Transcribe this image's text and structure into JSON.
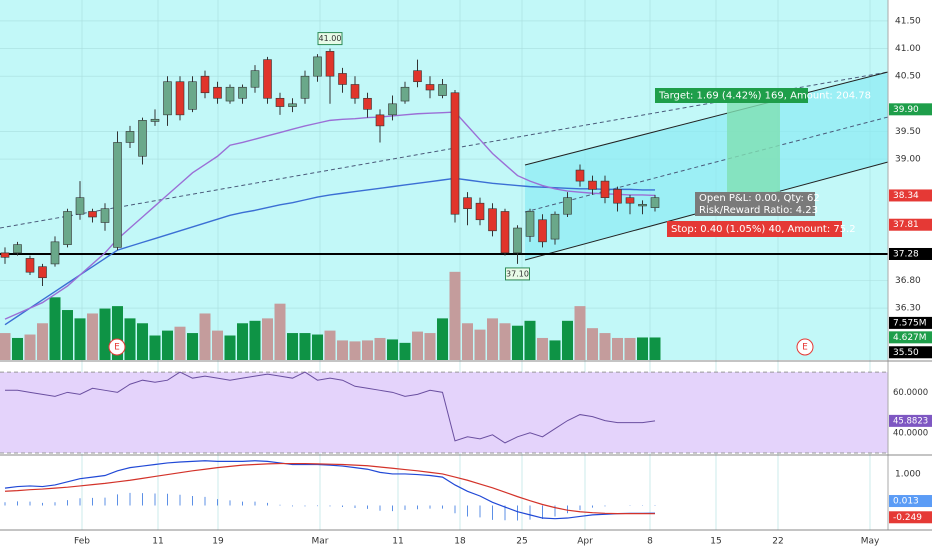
{
  "chart_data": {
    "type": "candlestick",
    "open": [
      37.3,
      37.3,
      37.2,
      37.05,
      37.1,
      37.45,
      38.0,
      38.05,
      37.85,
      37.4,
      39.3,
      39.05,
      39.68,
      39.8,
      40.4,
      39.9,
      40.5,
      40.3,
      40.05,
      40.1,
      40.3,
      40.8,
      40.1,
      39.95,
      40.1,
      40.5,
      40.95,
      40.55,
      40.35,
      40.1,
      39.8,
      39.8,
      40.05,
      40.6,
      40.35,
      40.15,
      40.2,
      38.3,
      38.2,
      38.1,
      38.05,
      37.3,
      37.6,
      37.9,
      37.55,
      38.0,
      38.8,
      38.6,
      38.6,
      38.45,
      38.3,
      38.15,
      38.12
    ],
    "high": [
      37.4,
      37.5,
      37.25,
      37.1,
      37.6,
      38.1,
      38.6,
      38.1,
      38.2,
      39.5,
      39.6,
      39.75,
      39.9,
      40.5,
      40.5,
      40.5,
      40.6,
      40.4,
      40.35,
      40.35,
      40.7,
      40.85,
      40.2,
      40.1,
      40.6,
      40.9,
      41.0,
      40.65,
      40.5,
      40.2,
      39.9,
      40.15,
      40.4,
      40.8,
      40.5,
      40.45,
      40.25,
      38.4,
      38.3,
      38.2,
      38.1,
      37.8,
      38.1,
      38.0,
      38.05,
      38.4,
      38.9,
      38.7,
      38.7,
      38.5,
      38.35,
      38.25,
      38.35
    ],
    "low": [
      37.1,
      37.25,
      36.9,
      36.7,
      37.05,
      37.4,
      37.9,
      37.85,
      37.7,
      37.35,
      39.2,
      38.9,
      39.6,
      39.6,
      39.7,
      39.85,
      40.1,
      40.0,
      40.0,
      40.0,
      40.2,
      40.0,
      39.8,
      39.85,
      40.0,
      40.4,
      40.0,
      40.2,
      40.0,
      39.75,
      39.3,
      39.7,
      40.0,
      40.3,
      40.1,
      40.1,
      37.85,
      37.8,
      37.8,
      37.6,
      37.25,
      37.1,
      37.5,
      37.4,
      37.45,
      37.95,
      38.5,
      38.35,
      38.2,
      38.05,
      38.0,
      38.0,
      38.05
    ],
    "close": [
      37.22,
      37.45,
      36.95,
      36.85,
      37.5,
      38.05,
      38.3,
      37.95,
      38.1,
      39.3,
      39.5,
      39.7,
      39.72,
      40.4,
      39.8,
      40.4,
      40.2,
      40.1,
      40.3,
      40.3,
      40.6,
      40.1,
      39.95,
      40.0,
      40.5,
      40.85,
      40.5,
      40.35,
      40.1,
      39.9,
      39.6,
      40.0,
      40.3,
      40.4,
      40.25,
      40.35,
      38.0,
      38.1,
      37.9,
      37.7,
      37.3,
      37.75,
      38.05,
      37.5,
      38.0,
      38.3,
      38.6,
      38.45,
      38.3,
      38.2,
      38.2,
      38.18,
      38.3
    ],
    "up_color": "#6aa88a",
    "down_color": "#e0352b",
    "wick_color": "#333333",
    "ylim": [
      35.36,
      41.88
    ],
    "yticks": [
      {
        "value": 41.5,
        "label": "41.50"
      },
      {
        "value": 41.0,
        "label": "41.00"
      },
      {
        "value": 40.5,
        "label": "40.50"
      },
      {
        "value": 39.5,
        "label": "39.50"
      },
      {
        "value": 39.0,
        "label": "39.00"
      },
      {
        "value": 36.8,
        "label": "36.80"
      },
      {
        "value": 36.3,
        "label": "36.30"
      }
    ],
    "price_markers": [
      {
        "value": 39.9,
        "label": "39.90",
        "color": "#1e9e4a"
      },
      {
        "value": 38.34,
        "label": "38.34",
        "color": "#e53935"
      },
      {
        "value": 37.81,
        "label": "37.81",
        "color": "#e53935"
      },
      {
        "value": 37.28,
        "label": "37.28",
        "color": "#000000"
      },
      {
        "value": 35.5,
        "label": "35.50",
        "color": "#000000"
      }
    ],
    "moving_averages": [
      {
        "color": "#3b6fd4",
        "values": [
          36.0,
          36.15,
          36.3,
          36.45,
          36.6,
          36.75,
          36.9,
          37.05,
          37.2,
          37.35,
          37.42,
          37.49,
          37.56,
          37.63,
          37.7,
          37.77,
          37.84,
          37.91,
          37.98,
          38.03,
          38.07,
          38.12,
          38.17,
          38.21,
          38.26,
          38.31,
          38.35,
          38.38,
          38.41,
          38.44,
          38.47,
          38.5,
          38.53,
          38.56,
          38.59,
          38.62,
          38.65,
          38.62,
          38.59,
          38.56,
          38.54,
          38.52,
          38.5,
          38.49,
          38.48,
          38.47,
          38.46,
          38.46,
          38.45,
          38.45,
          38.45,
          38.44,
          38.44
        ]
      },
      {
        "color": "#9b6fd6",
        "values": [
          36.1,
          36.2,
          36.3,
          36.4,
          36.55,
          36.7,
          36.9,
          37.1,
          37.3,
          37.55,
          37.75,
          37.95,
          38.15,
          38.35,
          38.55,
          38.75,
          38.9,
          39.05,
          39.25,
          39.3,
          39.36,
          39.42,
          39.48,
          39.54,
          39.6,
          39.65,
          39.7,
          39.72,
          39.73,
          39.75,
          39.76,
          39.78,
          39.8,
          39.82,
          39.83,
          39.84,
          39.85,
          39.6,
          39.35,
          39.1,
          38.9,
          38.7,
          38.6,
          38.52,
          38.46,
          38.42,
          38.4,
          38.38,
          38.37,
          38.36,
          38.35,
          38.35,
          38.34
        ]
      }
    ],
    "volume": [
      5.5,
      4.5,
      5.2,
      7.5,
      12.8,
      10.2,
      8.5,
      9.5,
      10.5,
      11,
      8.5,
      7.5,
      5,
      6,
      6.8,
      5.5,
      9.5,
      6,
      5,
      7.5,
      8,
      8.5,
      11.5,
      5.5,
      5.5,
      5.2,
      6,
      4,
      3.8,
      4,
      4.5,
      4.2,
      3.5,
      5.8,
      5.5,
      8.5,
      18,
      7.5,
      6.2,
      8.5,
      7.5,
      7,
      8,
      4.5,
      4,
      8,
      11,
      6.5,
      5.5,
      4.5,
      4.5,
      4.6,
      4.6
    ],
    "volume_lim": [
      0,
      73.5
    ],
    "volume_up_color": "#0e9345",
    "volume_down_color": "#c49c9c",
    "volume_markers": [
      {
        "value": 7.575,
        "label": "7.575M",
        "color": "#000000"
      },
      {
        "value": 4.627,
        "label": "4.627M",
        "color": "#1e9e4a"
      }
    ],
    "annotations": [
      "41.00",
      "37.10"
    ],
    "position_labels": [
      "Target: 1.69 (4.42%) 169, Amount: 204.78",
      "Open P&L: 0.00, Qty: 62",
      "Risk/Reward Ratio: 4.23",
      "Stop: 0.40 (1.05%) 40, Amount: 75.2"
    ],
    "earnings_markers": [
      "E",
      "E"
    ],
    "rsi": {
      "color": "#6a4fa0",
      "values": [
        61,
        61,
        60,
        59,
        58,
        60,
        59,
        62,
        61,
        60,
        64,
        66,
        65,
        66,
        70,
        67,
        68,
        67,
        66,
        67,
        68,
        69,
        68,
        67,
        70,
        66,
        67,
        66,
        63,
        62,
        61,
        60,
        58,
        59,
        61,
        60,
        36,
        38,
        37,
        39,
        35,
        38,
        40,
        38,
        42,
        46,
        49,
        48,
        46,
        45,
        45,
        45,
        45.88
      ],
      "ylim": [
        29.5,
        75
      ],
      "levels": [
        70,
        30
      ],
      "yticks": [
        {
          "value": 60,
          "label": "60.0000"
        },
        {
          "value": 40,
          "label": "40.0000"
        }
      ],
      "marker": {
        "value": 45.8823,
        "color": "#7e57c2"
      }
    },
    "macd": {
      "ylim": [
        -0.78,
        1.57
      ],
      "yticks": [
        {
          "value": 1,
          "label": "1.000"
        }
      ],
      "series": [
        {
          "color": "#2149d6",
          "values": [
            0.55,
            0.6,
            0.62,
            0.6,
            0.65,
            0.75,
            0.85,
            0.9,
            0.95,
            1.1,
            1.2,
            1.25,
            1.3,
            1.35,
            1.38,
            1.4,
            1.42,
            1.4,
            1.4,
            1.4,
            1.42,
            1.4,
            1.35,
            1.3,
            1.3,
            1.3,
            1.28,
            1.25,
            1.2,
            1.15,
            1.05,
            1.0,
            1.0,
            0.98,
            0.95,
            0.9,
            0.65,
            0.45,
            0.3,
            0.1,
            -0.05,
            -0.2,
            -0.3,
            -0.4,
            -0.42,
            -0.4,
            -0.35,
            -0.3,
            -0.28,
            -0.26,
            -0.25,
            -0.25,
            -0.249
          ]
        },
        {
          "color": "#d3332a",
          "values": [
            0.45,
            0.47,
            0.5,
            0.52,
            0.55,
            0.58,
            0.62,
            0.66,
            0.7,
            0.75,
            0.8,
            0.86,
            0.92,
            0.98,
            1.04,
            1.1,
            1.15,
            1.2,
            1.24,
            1.28,
            1.3,
            1.32,
            1.33,
            1.33,
            1.33,
            1.32,
            1.31,
            1.3,
            1.28,
            1.26,
            1.22,
            1.18,
            1.14,
            1.1,
            1.05,
            1.0,
            0.9,
            0.8,
            0.68,
            0.56,
            0.42,
            0.28,
            0.15,
            0.03,
            -0.07,
            -0.15,
            -0.2,
            -0.23,
            -0.25,
            -0.26,
            -0.26,
            -0.26,
            -0.262
          ]
        }
      ],
      "histogram": {
        "color": "#5b8fe6",
        "values": [
          0.1,
          0.13,
          0.12,
          0.08,
          0.1,
          0.17,
          0.23,
          0.24,
          0.25,
          0.35,
          0.4,
          0.39,
          0.38,
          0.37,
          0.34,
          0.3,
          0.27,
          0.2,
          0.16,
          0.12,
          0.12,
          0.08,
          0.02,
          -0.03,
          -0.03,
          -0.02,
          -0.03,
          -0.05,
          -0.08,
          -0.11,
          -0.17,
          -0.18,
          -0.14,
          -0.12,
          -0.1,
          -0.1,
          -0.25,
          -0.35,
          -0.38,
          -0.46,
          -0.47,
          -0.48,
          -0.45,
          -0.43,
          -0.35,
          -0.25,
          -0.15,
          -0.07,
          -0.03,
          0.0,
          0.01,
          0.01,
          0.013
        ]
      },
      "markers": [
        {
          "value": 0.013,
          "label": "0.013",
          "color": "#5b9cf6"
        },
        {
          "value": -0.249,
          "label": "-0.249",
          "color": "#e53935"
        }
      ]
    },
    "x_labels": [
      "Feb",
      "11",
      "19",
      "Mar",
      "11",
      "18",
      "25",
      "Apr",
      "8",
      "15",
      "22",
      "May"
    ]
  }
}
